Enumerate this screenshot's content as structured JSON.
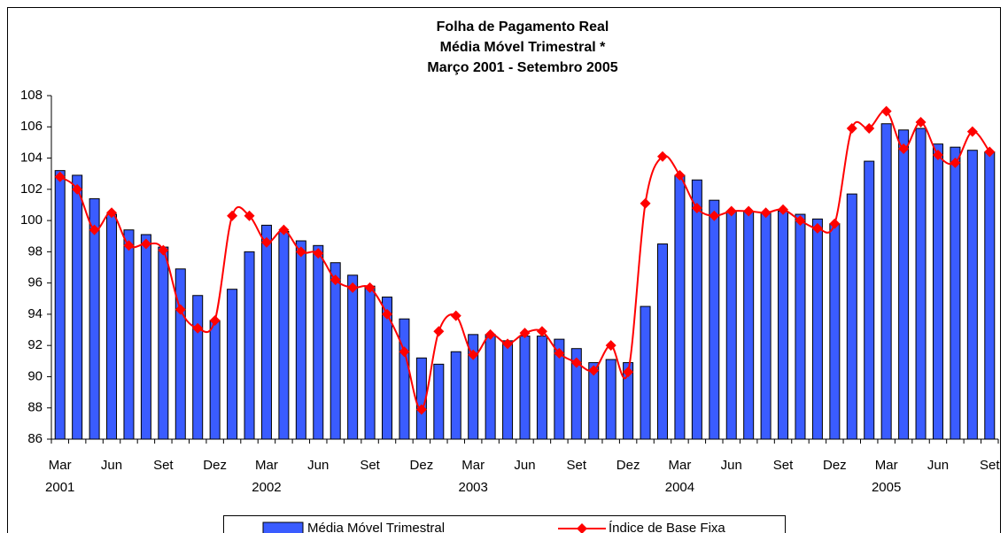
{
  "chart_data": {
    "type": "bar_line",
    "title": [
      "Folha de Pagamento Real",
      "Média Móvel Trimestral *",
      "Março 2001 - Setembro 2005"
    ],
    "categories": [
      "Mar",
      null,
      null,
      "Jun",
      null,
      null,
      "Set",
      null,
      null,
      "Dez",
      null,
      null,
      "Mar",
      null,
      null,
      "Jun",
      null,
      null,
      "Set",
      null,
      null,
      "Dez",
      null,
      null,
      "Mar",
      null,
      null,
      "Jun",
      null,
      null,
      "Set",
      null,
      null,
      "Dez",
      null,
      null,
      "Mar",
      null,
      null,
      "Jun",
      null,
      null,
      "Set",
      null,
      null,
      "Dez",
      null,
      null,
      "Mar",
      null,
      null,
      "Jun",
      null,
      null,
      "Set"
    ],
    "years": [
      "2001",
      null,
      null,
      null,
      null,
      null,
      null,
      null,
      null,
      null,
      null,
      null,
      "2002",
      null,
      null,
      null,
      null,
      null,
      null,
      null,
      null,
      null,
      null,
      null,
      "2003",
      null,
      null,
      null,
      null,
      null,
      null,
      null,
      null,
      null,
      null,
      null,
      "2004",
      null,
      null,
      null,
      null,
      null,
      null,
      null,
      null,
      null,
      null,
      null,
      "2005",
      null,
      null,
      null,
      null,
      null,
      null
    ],
    "series": [
      {
        "name": "Média Móvel Trimestral",
        "kind": "bar",
        "color": "#3a5cff",
        "values": [
          103.2,
          102.9,
          101.4,
          100.4,
          99.4,
          99.1,
          98.3,
          96.9,
          95.2,
          93.6,
          95.6,
          98.0,
          99.7,
          99.3,
          98.7,
          98.4,
          97.3,
          96.5,
          95.8,
          95.1,
          93.7,
          91.2,
          90.8,
          91.6,
          92.7,
          92.7,
          92.3,
          92.6,
          92.6,
          92.4,
          91.8,
          90.9,
          91.1,
          90.9,
          94.5,
          98.5,
          102.9,
          102.6,
          101.3,
          100.6,
          100.6,
          100.5,
          100.6,
          100.4,
          100.1,
          99.8,
          101.7,
          103.8,
          106.2,
          105.8,
          105.9,
          104.9,
          104.7,
          104.5,
          104.4
        ]
      },
      {
        "name": "Índice de Base Fixa",
        "kind": "line",
        "color": "#ff0000",
        "values": [
          102.8,
          102.0,
          99.4,
          100.5,
          98.4,
          98.5,
          98.1,
          94.3,
          93.1,
          93.6,
          100.3,
          100.3,
          98.6,
          99.4,
          98.0,
          97.9,
          96.2,
          95.7,
          95.7,
          94.0,
          91.6,
          87.9,
          92.9,
          93.9,
          91.4,
          92.7,
          92.1,
          92.8,
          92.9,
          91.5,
          90.9,
          90.4,
          92.0,
          90.3,
          101.1,
          104.1,
          102.9,
          100.8,
          100.3,
          100.6,
          100.6,
          100.5,
          100.7,
          100.0,
          99.5,
          99.8,
          105.9,
          105.9,
          107.0,
          104.6,
          106.3,
          104.2,
          103.7,
          105.7,
          104.4
        ]
      }
    ],
    "ylim": [
      86,
      108
    ],
    "yticks": [
      86,
      88,
      90,
      92,
      94,
      96,
      98,
      100,
      102,
      104,
      106,
      108
    ],
    "grid": false
  }
}
